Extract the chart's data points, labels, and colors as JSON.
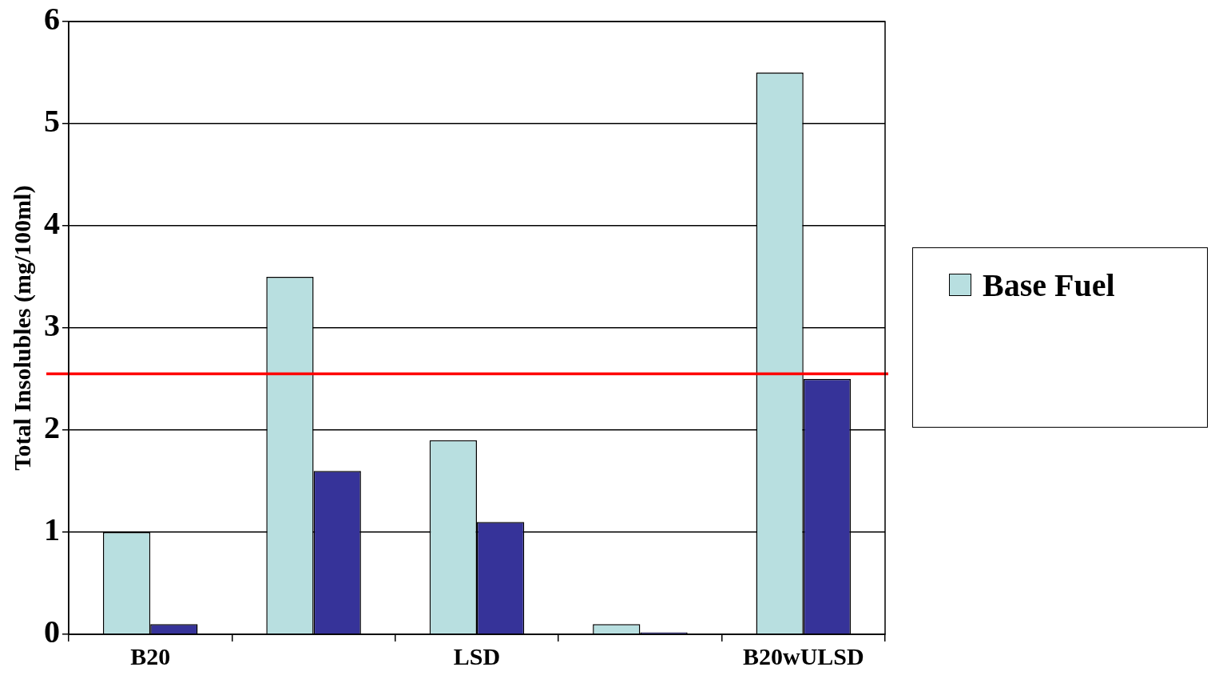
{
  "chart_data": {
    "type": "bar",
    "ylabel": "Total Insolubles (mg/100ml)",
    "categories": [
      "B20",
      null,
      "LSD",
      null,
      "B20wULSD"
    ],
    "series": [
      {
        "name": "Base Fuel",
        "color": "#b8dfe0",
        "values": [
          1.0,
          3.5,
          1.9,
          0.1,
          5.5
        ]
      },
      {
        "color": "#363399",
        "values": [
          0.1,
          1.6,
          1.1,
          0.02,
          2.5
        ]
      }
    ],
    "ylim": [
      0,
      6
    ],
    "yticks": [
      0,
      1,
      2,
      3,
      4,
      5,
      6
    ],
    "grid": "y",
    "legend": "right",
    "ref_lines": [
      {
        "axis": "y",
        "value": 2.55,
        "color": "#ff0000"
      }
    ]
  }
}
